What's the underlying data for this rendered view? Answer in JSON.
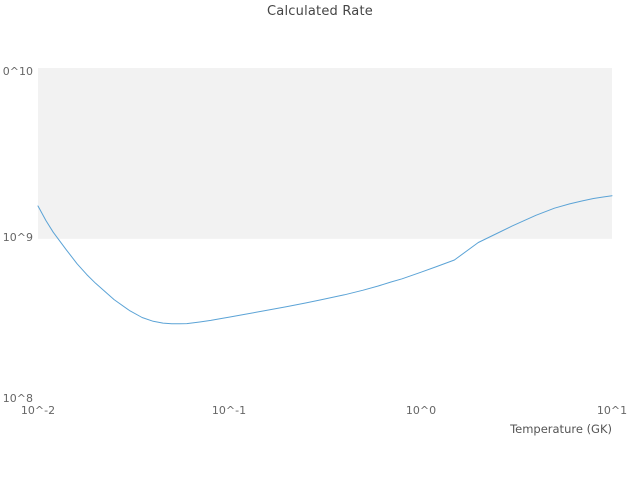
{
  "title": "Calculated Rate",
  "axis": {
    "x_label": "Temperature (GK)",
    "x_tick_labels": [
      "10^-2",
      "10^-1",
      "10^0",
      "10^1"
    ],
    "y_tick_labels": [
      "0^10",
      "10^9",
      "10^8"
    ]
  },
  "chart_data": {
    "type": "line",
    "title": "Calculated Rate",
    "xlabel": "Temperature (GK)",
    "ylabel": "",
    "xscale": "log",
    "yscale": "log",
    "xlim": [
      0.01,
      10
    ],
    "ylim": [
      100000000.0,
      11500000000.0
    ],
    "grid": false,
    "legend": "none",
    "x_ticks": [
      {
        "value": 0.01,
        "label": "10^-2"
      },
      {
        "value": 0.1,
        "label": "10^-1"
      },
      {
        "value": 1.0,
        "label": "10^0"
      },
      {
        "value": 10.0,
        "label": "10^1"
      }
    ],
    "y_ticks": [
      {
        "value": 10000000000.0,
        "label": "0^10"
      },
      {
        "value": 1000000000.0,
        "label": "10^9"
      },
      {
        "value": 100000000.0,
        "label": "10^8"
      }
    ],
    "band": {
      "from": 1000000000.0,
      "to": "top",
      "color": "#f2f2f2"
    },
    "line_color": "#5ba3d6",
    "line_width": 1,
    "series": [
      {
        "name": "calculated-rate",
        "x": [
          0.01,
          0.011,
          0.012,
          0.014,
          0.016,
          0.018,
          0.02,
          0.025,
          0.03,
          0.035,
          0.04,
          0.045,
          0.05,
          0.055,
          0.06,
          0.07,
          0.08,
          0.09,
          0.1,
          0.12,
          0.15,
          0.2,
          0.25,
          0.3,
          0.4,
          0.5,
          0.6,
          0.7,
          0.8,
          1.0,
          1.2,
          1.5,
          2.0,
          2.5,
          3.0,
          4.0,
          5.0,
          6.0,
          7.0,
          8.0,
          9.0,
          10.0
        ],
        "y": [
          1600000000.0,
          1300000000.0,
          1100000000.0,
          860000000.0,
          700000000.0,
          600000000.0,
          530000000.0,
          420000000.0,
          360000000.0,
          325000000.0,
          308000000.0,
          300000000.0,
          297000000.0,
          297000000.0,
          298000000.0,
          305000000.0,
          312000000.0,
          320000000.0,
          327000000.0,
          340000000.0,
          357000000.0,
          380000000.0,
          400000000.0,
          418000000.0,
          450000000.0,
          480000000.0,
          510000000.0,
          540000000.0,
          565000000.0,
          620000000.0,
          670000000.0,
          740000000.0,
          950000000.0,
          1080000000.0,
          1200000000.0,
          1400000000.0,
          1550000000.0,
          1650000000.0,
          1720000000.0,
          1780000000.0,
          1820000000.0,
          1850000000.0
        ]
      }
    ]
  }
}
